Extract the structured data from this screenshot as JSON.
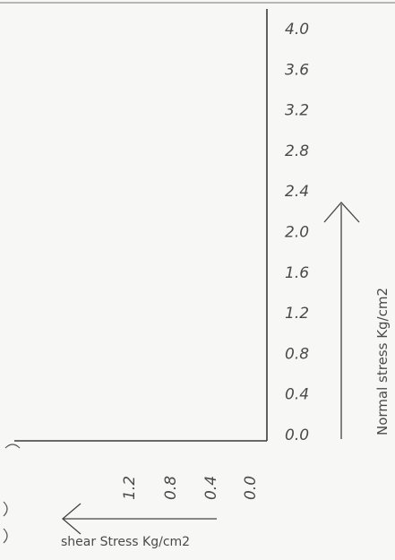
{
  "chart_data": {
    "type": "other",
    "y_axis": {
      "label": "Normal stress Kg/cm2",
      "ticks": [
        "4.0",
        "3.6",
        "3.2",
        "2.8",
        "2.4",
        "2.0",
        "1.6",
        "1.2",
        "0.8",
        "0.4",
        "0.0"
      ],
      "range": [
        0,
        4.0
      ]
    },
    "x_axis": {
      "label": "shear Stress Kg/cm2",
      "ticks": [
        "1.2",
        "0.8",
        "0.4",
        "0.0"
      ],
      "direction": "right-to-left"
    }
  },
  "colors": {
    "ink": "#4a4a4a",
    "paper": "#f7f7f5"
  }
}
